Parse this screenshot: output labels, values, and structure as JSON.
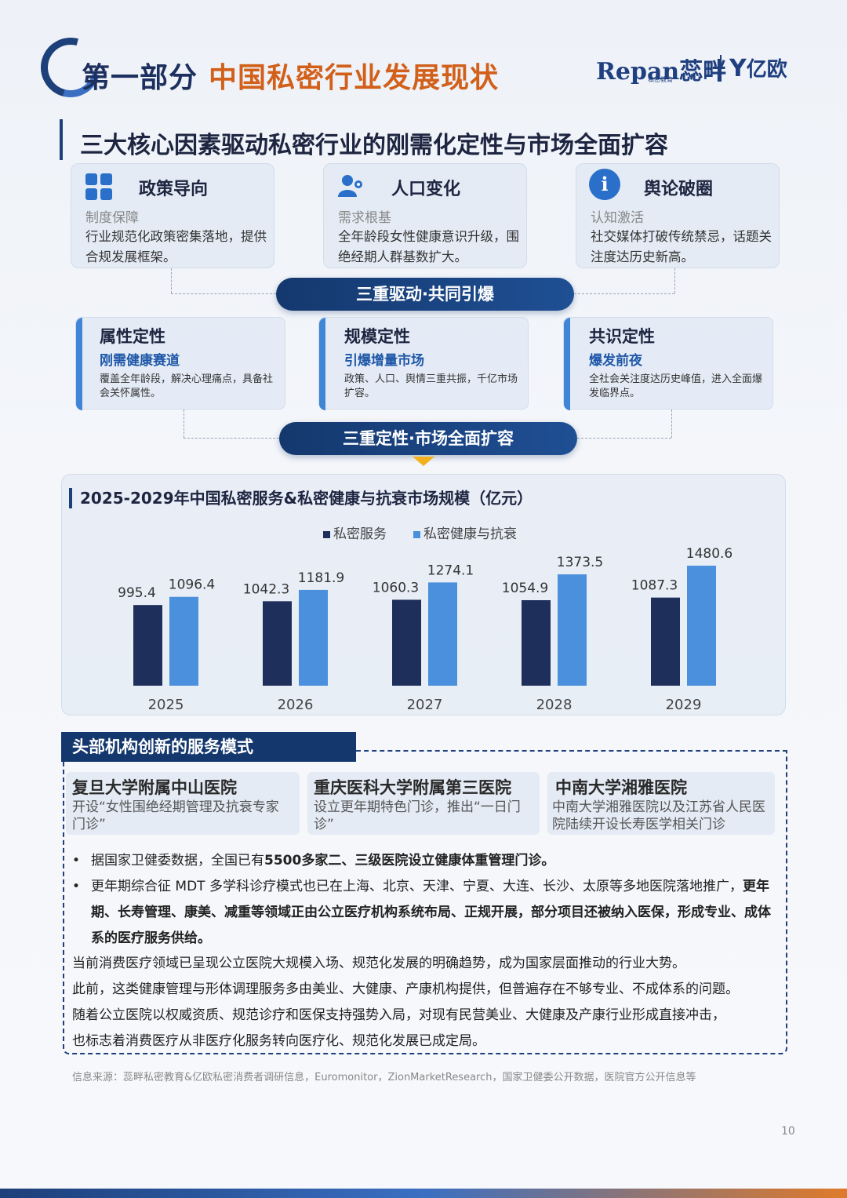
{
  "header": {
    "section_part": "第一部分",
    "section_topic": "中国私密行业发展现状",
    "logo_brand": "Repan蕊畔",
    "logo_brand_sub": "私密教育",
    "logo_partner": "亿欧"
  },
  "main_heading": "三大核心因素驱动私密行业的刚需化定性与市场全面扩容",
  "factors": [
    {
      "icon": "grid-icon",
      "title": "政策导向",
      "subtitle": "制度保障",
      "body": "行业规范化政策密集落地，提供合规发展框架。"
    },
    {
      "icon": "people-icon",
      "title": "人口变化",
      "subtitle": "需求根基",
      "body": "全年龄段女性健康意识升级，围绝经期人群基数扩大。"
    },
    {
      "icon": "info-icon",
      "title": "舆论破圈",
      "subtitle": "认知激活",
      "body": "社交媒体打破传统禁忌，话题关注度达历史新高。"
    }
  ],
  "pill_1": "三重驱动·共同引爆",
  "qualities": [
    {
      "title": "属性定性",
      "subtitle": "刚需健康赛道",
      "body": "覆盖全年龄段，解决心理痛点，具备社会关怀属性。"
    },
    {
      "title": "规模定性",
      "subtitle": "引爆增量市场",
      "body": "政策、人口、舆情三重共振，千亿市场扩容。"
    },
    {
      "title": "共识定性",
      "subtitle": "爆发前夜",
      "body": "全社会关注度达历史峰值，进入全面爆发临界点。"
    }
  ],
  "pill_2": "三重定性·市场全面扩容",
  "chart_data": {
    "type": "bar",
    "title": "2025-2029年中国私密服务&私密健康与抗衰市场规模（亿元）",
    "categories": [
      "2025",
      "2026",
      "2027",
      "2028",
      "2029"
    ],
    "series": [
      {
        "name": "私密服务",
        "color": "#1e2f5c",
        "values": [
          995.4,
          1042.3,
          1060.3,
          1054.9,
          1087.3
        ]
      },
      {
        "name": "私密健康与抗衰",
        "color": "#4a90dc",
        "values": [
          1096.4,
          1181.9,
          1274.1,
          1373.5,
          1480.6
        ]
      }
    ],
    "ylim": [
      0,
      1600
    ],
    "legend_position": "top-center",
    "grid": false
  },
  "innovation": {
    "header": "头部机构创新的服务模式",
    "hospitals": [
      {
        "name": "复旦大学附属中山医院",
        "desc": "开设“女性围绝经期管理及抗衰专家门诊”"
      },
      {
        "name": "重庆医科大学附属第三医院",
        "desc": "设立更年期特色门诊，推出“一日门诊”"
      },
      {
        "name": "中南大学湘雅医院",
        "desc": "中南大学湘雅医院以及江苏省人民医院陆续开设长寿医学相关门诊"
      }
    ],
    "bullet_1_pre": "据国家卫健委数据，全国已有",
    "bullet_1_bold": "5500多家二、三级医院设立健康体重管理门诊。",
    "bullet_2_pre": "更年期综合征 MDT 多学科诊疗模式也已在上海、北京、天津、宁夏、大连、长沙、太原等多地医院落地推广，",
    "bullet_2_bold": "更年期、长寿管理、康美、减重等领域正由公立医疗机构系统布局、正规开展，部分项目还被纳入医保，形成专业、成体系的医疗服务供给。",
    "paragraphs": [
      "当前消费医疗领域已呈现公立医院大规模入场、规范化发展的明确趋势，成为国家层面推动的行业大势。",
      "此前，这类健康管理与形体调理服务多由美业、大健康、产康机构提供，但普遍存在不够专业、不成体系的问题。",
      "随着公立医院以权威资质、规范诊疗和医保支持强势入局，对现有民营美业、大健康及产康行业形成直接冲击，",
      "也标志着消费医疗从非医疗化服务转向医疗化、规范化发展已成定局。"
    ]
  },
  "source": "信息来源：蕊畔私密教育&亿欧私密消费者调研信息，Euromonitor，ZionMarketResearch，国家卫健委公开数据，医院官方公开信息等",
  "page_number": "10"
}
